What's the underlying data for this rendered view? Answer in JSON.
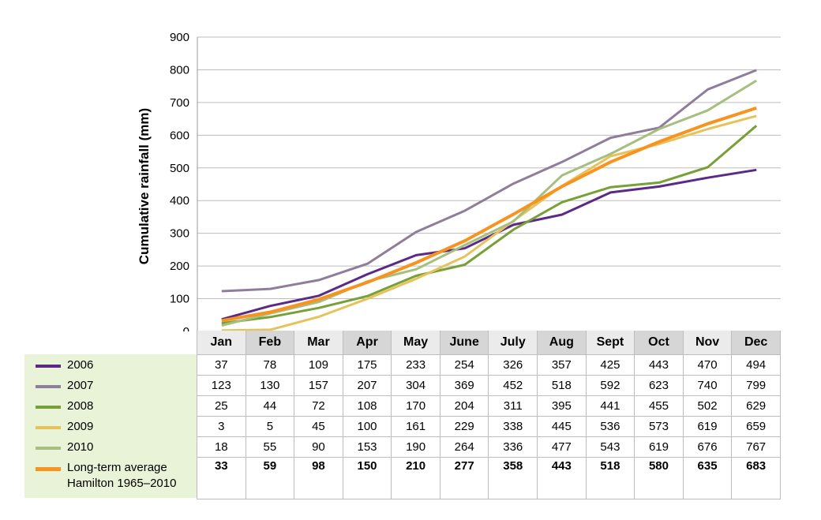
{
  "chart_data": {
    "type": "line",
    "ylabel": "Cumulative rainfall (mm)",
    "xlabel": "",
    "ylim": [
      0,
      900
    ],
    "yticks": [
      0,
      100,
      200,
      300,
      400,
      500,
      600,
      700,
      800,
      900
    ],
    "grid": true,
    "categories": [
      "Jan",
      "Feb",
      "Mar",
      "Apr",
      "May",
      "June",
      "July",
      "Aug",
      "Sept",
      "Oct",
      "Nov",
      "Dec"
    ],
    "series": [
      {
        "name": "2006",
        "color": "#5b2a86",
        "values": [
          37,
          78,
          109,
          175,
          233,
          254,
          326,
          357,
          425,
          443,
          470,
          494
        ]
      },
      {
        "name": "2007",
        "color": "#8e7e9c",
        "values": [
          123,
          130,
          157,
          207,
          304,
          369,
          452,
          518,
          592,
          623,
          740,
          799
        ]
      },
      {
        "name": "2008",
        "color": "#77a038",
        "values": [
          25,
          44,
          72,
          108,
          170,
          204,
          311,
          395,
          441,
          455,
          502,
          629
        ]
      },
      {
        "name": "2009",
        "color": "#e6c35a",
        "values": [
          3,
          5,
          45,
          100,
          161,
          229,
          338,
          445,
          536,
          573,
          619,
          659
        ]
      },
      {
        "name": "2010",
        "color": "#a6bf7f",
        "values": [
          18,
          55,
          90,
          153,
          190,
          264,
          336,
          477,
          543,
          619,
          676,
          767
        ]
      },
      {
        "name": "Long-term average Hamilton 1965–2010",
        "label_lines": [
          "Long-term average",
          "Hamilton 1965–2010"
        ],
        "color": "#f7931e",
        "values": [
          33,
          59,
          98,
          150,
          210,
          277,
          358,
          443,
          518,
          580,
          635,
          683
        ],
        "bold": true
      }
    ]
  }
}
